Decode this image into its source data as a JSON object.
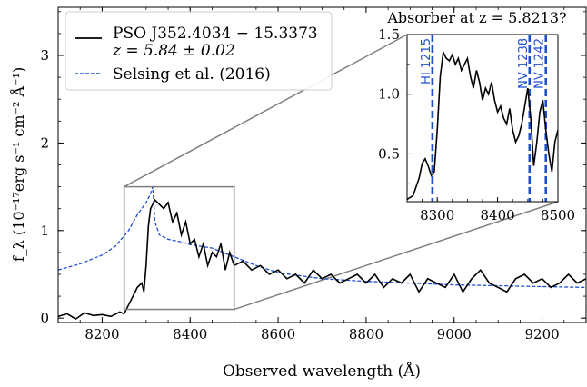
{
  "chart_data": [
    {
      "type": "line",
      "xlabel": "Observed wavelength (Å)",
      "ylabel": "f_λ (10⁻¹⁷erg s⁻¹ cm⁻² Å⁻¹)",
      "xlim": [
        8100,
        9300
      ],
      "ylim": [
        -0.05,
        3.55
      ],
      "xticks": [
        8200,
        8400,
        8600,
        8800,
        9000,
        9200
      ],
      "yticks": [
        0,
        1,
        2,
        3
      ],
      "grid": false,
      "legend_position": "top-left",
      "series": [
        {
          "name": "PSO J352.4034 − 15.3373",
          "name_line2": "z = 5.84 ± 0.02",
          "color": "#000000",
          "style": "solid",
          "x": [
            8100,
            8120,
            8140,
            8160,
            8180,
            8200,
            8220,
            8240,
            8250,
            8260,
            8270,
            8280,
            8290,
            8295,
            8300,
            8305,
            8310,
            8320,
            8330,
            8340,
            8350,
            8360,
            8370,
            8380,
            8390,
            8400,
            8410,
            8420,
            8430,
            8440,
            8450,
            8460,
            8470,
            8480,
            8490,
            8500,
            8520,
            8540,
            8560,
            8580,
            8600,
            8620,
            8640,
            8660,
            8680,
            8700,
            8720,
            8740,
            8760,
            8780,
            8800,
            8820,
            8840,
            8860,
            8880,
            8900,
            8920,
            8940,
            8960,
            8980,
            9000,
            9020,
            9040,
            9060,
            9080,
            9100,
            9120,
            9140,
            9160,
            9180,
            9200,
            9220,
            9240,
            9260,
            9280,
            9300
          ],
          "y": [
            0.02,
            0.05,
            -0.01,
            0.06,
            0.03,
            0.04,
            0.02,
            0.07,
            0.05,
            0.15,
            0.25,
            0.35,
            0.4,
            0.3,
            0.6,
            1.05,
            1.25,
            1.35,
            1.3,
            1.25,
            1.32,
            1.1,
            1.2,
            0.95,
            1.1,
            0.85,
            0.9,
            0.7,
            0.85,
            0.6,
            0.75,
            0.7,
            0.85,
            0.55,
            0.75,
            0.6,
            0.65,
            0.55,
            0.6,
            0.5,
            0.55,
            0.45,
            0.5,
            0.4,
            0.55,
            0.45,
            0.5,
            0.4,
            0.45,
            0.5,
            0.4,
            0.5,
            0.35,
            0.45,
            0.4,
            0.5,
            0.3,
            0.45,
            0.4,
            0.35,
            0.5,
            0.3,
            0.45,
            0.55,
            0.4,
            0.35,
            0.3,
            0.45,
            0.5,
            0.4,
            0.45,
            0.35,
            0.4,
            0.5,
            0.4,
            0.45
          ]
        },
        {
          "name": "Selsing et al. (2016)",
          "color": "#1f4fd0",
          "style": "dashed",
          "x": [
            8100,
            8150,
            8200,
            8230,
            8260,
            8280,
            8300,
            8310,
            8315,
            8320,
            8330,
            8350,
            8380,
            8400,
            8450,
            8500,
            8550,
            8600,
            8700,
            8800,
            8900,
            9000,
            9100,
            9200,
            9300
          ],
          "y": [
            0.55,
            0.62,
            0.72,
            0.82,
            1.0,
            1.18,
            1.32,
            1.42,
            1.5,
            1.1,
            0.95,
            0.9,
            0.87,
            0.84,
            0.8,
            0.7,
            0.6,
            0.52,
            0.45,
            0.42,
            0.4,
            0.38,
            0.37,
            0.36,
            0.35
          ]
        }
      ],
      "zoom_box": {
        "xlim": [
          8250,
          8500
        ],
        "ylim": [
          0.1,
          1.5
        ]
      }
    },
    {
      "type": "line",
      "title": "Absorber at z = 5.8213?",
      "xlim": [
        8250,
        8500
      ],
      "ylim": [
        0.1,
        1.5
      ],
      "xticks": [
        8300,
        8400,
        8500
      ],
      "yticks": [
        0.5,
        1.0,
        1.5
      ],
      "grid": false,
      "series": [
        {
          "name": "PSO J352.4034 − 15.3373",
          "color": "#000000",
          "style": "solid",
          "x": [
            8250,
            8260,
            8270,
            8275,
            8280,
            8285,
            8290,
            8295,
            8300,
            8305,
            8310,
            8315,
            8320,
            8325,
            8330,
            8335,
            8340,
            8345,
            8350,
            8355,
            8360,
            8365,
            8370,
            8375,
            8380,
            8385,
            8390,
            8395,
            8400,
            8405,
            8410,
            8415,
            8420,
            8425,
            8430,
            8435,
            8440,
            8445,
            8450,
            8455,
            8460,
            8465,
            8470,
            8475,
            8480,
            8485,
            8490,
            8495,
            8500
          ],
          "y": [
            0.12,
            0.15,
            0.3,
            0.42,
            0.46,
            0.4,
            0.32,
            0.35,
            0.7,
            1.15,
            1.35,
            1.3,
            1.28,
            1.33,
            1.25,
            1.3,
            1.2,
            1.25,
            1.3,
            1.15,
            1.05,
            1.2,
            1.1,
            0.95,
            1.05,
            1.0,
            1.1,
            0.95,
            0.85,
            0.9,
            0.8,
            0.75,
            0.88,
            0.7,
            0.6,
            0.65,
            0.75,
            0.9,
            1.05,
            0.8,
            0.4,
            0.6,
            0.85,
            0.95,
            0.7,
            0.5,
            0.35,
            0.6,
            0.7
          ]
        }
      ],
      "annotations": [
        {
          "label": "HI 1215",
          "x": 8292
        },
        {
          "label": "NV 1238",
          "x": 8453
        },
        {
          "label": "NV 1242",
          "x": 8480
        }
      ]
    }
  ]
}
